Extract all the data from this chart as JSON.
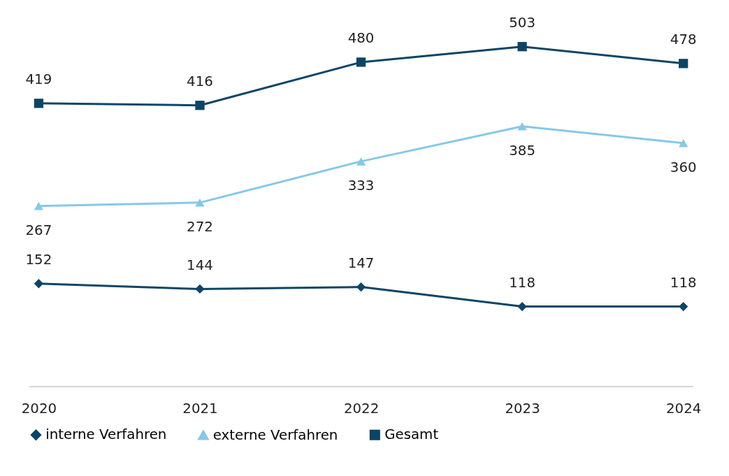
{
  "chart_data": {
    "type": "line",
    "categories": [
      "2020",
      "2021",
      "2022",
      "2023",
      "2024"
    ],
    "series": [
      {
        "name": "interne Verfahren",
        "color": "#0d4566",
        "marker": "diamond",
        "values": [
          152,
          144,
          147,
          118,
          118
        ]
      },
      {
        "name": "externe Verfahren",
        "color": "#86c8e8",
        "marker": "triangle",
        "values": [
          267,
          272,
          333,
          385,
          360
        ]
      },
      {
        "name": "Gesamt",
        "color": "#0d4566",
        "marker": "square",
        "values": [
          419,
          416,
          480,
          503,
          478
        ]
      }
    ],
    "data_labels": true,
    "legend": "bottom",
    "grid": false
  }
}
